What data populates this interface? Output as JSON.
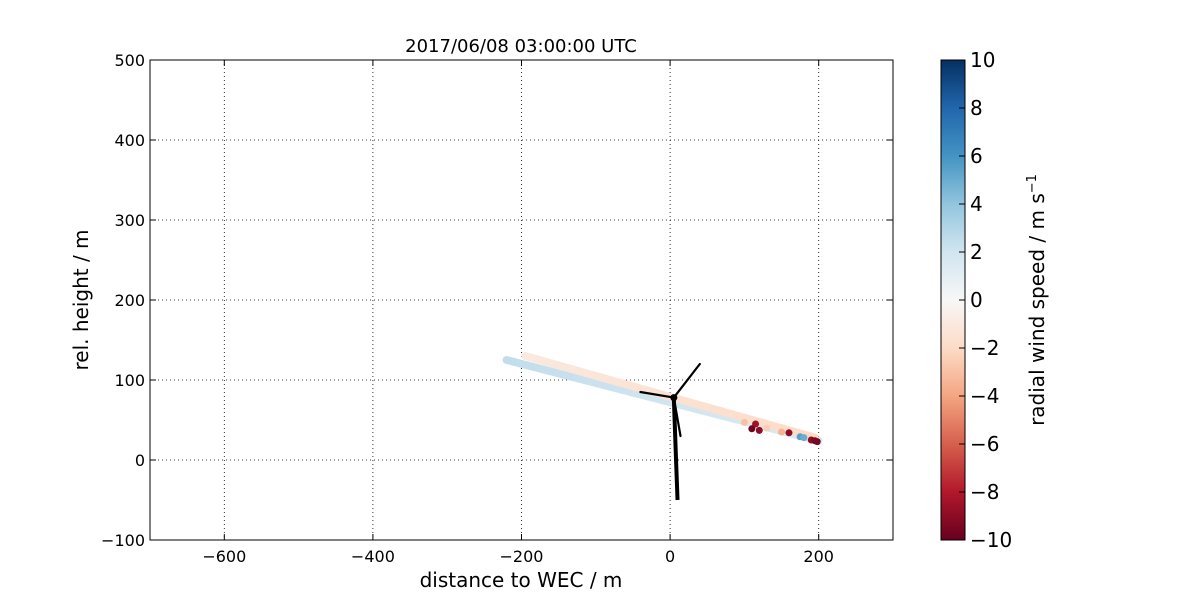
{
  "chart_data": {
    "type": "scatter",
    "title": "2017/06/08 03:00:00 UTC",
    "xlabel": "distance to WEC / m",
    "ylabel": "rel. height / m",
    "xlim": [
      -700,
      300
    ],
    "ylim": [
      -100,
      500
    ],
    "xticks": [
      -600,
      -400,
      -200,
      0,
      200
    ],
    "yticks": [
      -100,
      0,
      100,
      200,
      300,
      400,
      500
    ],
    "xtick_labels": [
      "−600",
      "−400",
      "−200",
      "0",
      "200"
    ],
    "ytick_labels": [
      "−100",
      "0",
      "100",
      "200",
      "300",
      "400",
      "500"
    ],
    "grid": true,
    "colormap": "RdBu",
    "colorbar": {
      "label_text": "radial wind speed / m s",
      "label_exponent": "−1",
      "range": [
        -10,
        10
      ],
      "ticks": [
        -10,
        -8,
        -6,
        -4,
        -2,
        0,
        2,
        4,
        6,
        8,
        10
      ],
      "tick_labels": [
        "−10",
        "−8",
        "−6",
        "−4",
        "−2",
        "0",
        "2",
        "4",
        "6",
        "8",
        "10"
      ]
    },
    "scan_lines": [
      {
        "x_start": -220,
        "y_start": 125,
        "x_end": 200,
        "y_end": 24,
        "v_start": 2.5,
        "v_end": 1.5
      },
      {
        "x_start": -195,
        "y_start": 130,
        "x_end": 195,
        "y_end": 28,
        "v_start": -1.0,
        "v_end": -2.0
      }
    ],
    "points": [
      {
        "x": 115,
        "y": 45,
        "v": -8.5
      },
      {
        "x": 100,
        "y": 47,
        "v": -3.0
      },
      {
        "x": 130,
        "y": 40,
        "v": -2.5
      },
      {
        "x": 150,
        "y": 35,
        "v": -3.5
      },
      {
        "x": 160,
        "y": 34,
        "v": -9.0
      },
      {
        "x": 175,
        "y": 29,
        "v": 5.5
      },
      {
        "x": 180,
        "y": 28,
        "v": 5.0
      },
      {
        "x": 190,
        "y": 25,
        "v": -9.0
      },
      {
        "x": 195,
        "y": 24,
        "v": -9.5
      },
      {
        "x": 198,
        "y": 23,
        "v": -9.5
      },
      {
        "x": 110,
        "y": 39,
        "v": -9.8
      },
      {
        "x": 120,
        "y": 37,
        "v": -9.0
      }
    ],
    "turbine": {
      "tower": [
        [
          5,
          78
        ],
        [
          8,
          0
        ],
        [
          10,
          -50
        ]
      ],
      "blades": [
        [
          [
            5,
            78
          ],
          [
            40,
            120
          ]
        ],
        [
          [
            5,
            78
          ],
          [
            -40,
            85
          ]
        ],
        [
          [
            5,
            78
          ],
          [
            14,
            30
          ]
        ]
      ]
    }
  }
}
